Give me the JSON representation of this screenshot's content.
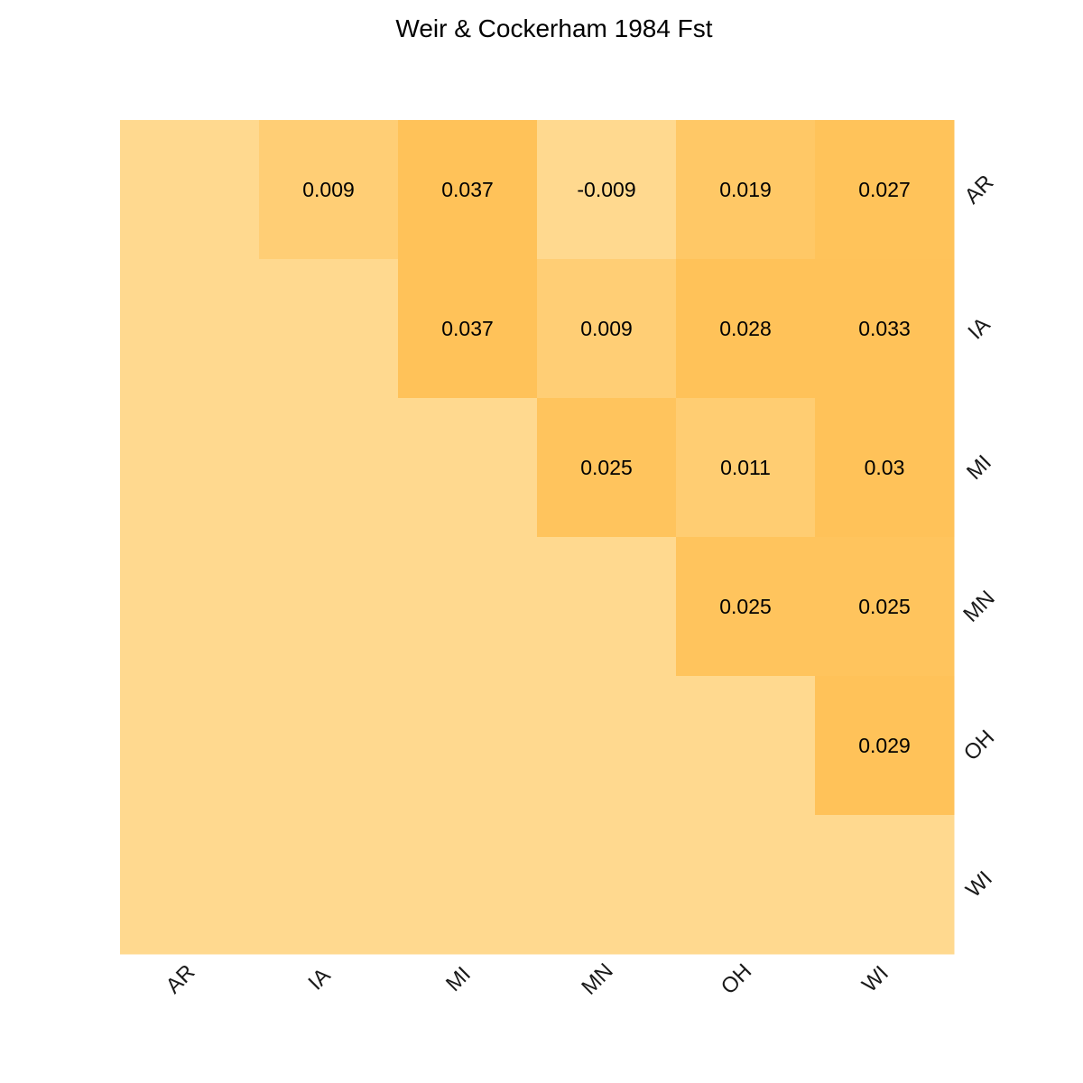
{
  "chart_data": {
    "type": "heatmap",
    "title": "Weir & Cockerham 1984 Fst",
    "xlabel": "",
    "ylabel": "",
    "x_categories": [
      "AR",
      "IA",
      "MI",
      "MN",
      "OH",
      "WI"
    ],
    "y_categories": [
      "AR",
      "IA",
      "MI",
      "MN",
      "OH",
      "WI"
    ],
    "values": [
      [
        null,
        0.009,
        0.037,
        -0.009,
        0.019,
        0.027
      ],
      [
        null,
        null,
        0.037,
        0.009,
        0.028,
        0.033
      ],
      [
        null,
        null,
        null,
        0.025,
        0.011,
        0.03
      ],
      [
        null,
        null,
        null,
        null,
        0.025,
        0.025
      ],
      [
        null,
        null,
        null,
        null,
        null,
        0.029
      ],
      [
        null,
        null,
        null,
        null,
        null,
        null
      ]
    ],
    "value_labels": [
      [
        "",
        "0.009",
        "0.037",
        "-0.009",
        "0.019",
        "0.027"
      ],
      [
        "",
        "",
        "0.037",
        "0.009",
        "0.028",
        "0.033"
      ],
      [
        "",
        "",
        "",
        "0.025",
        "0.011",
        "0.03"
      ],
      [
        "",
        "",
        "",
        "",
        "0.025",
        "0.025"
      ],
      [
        "",
        "",
        "",
        "",
        "",
        "0.029"
      ],
      [
        "",
        "",
        "",
        "",
        "",
        ""
      ]
    ],
    "color_scale": {
      "empty_color": "#ffd98f",
      "low_color": "#ffd98f",
      "high_color": "#ffc259",
      "range": [
        -0.009,
        0.028
      ]
    },
    "legend": "none",
    "grid": false
  }
}
